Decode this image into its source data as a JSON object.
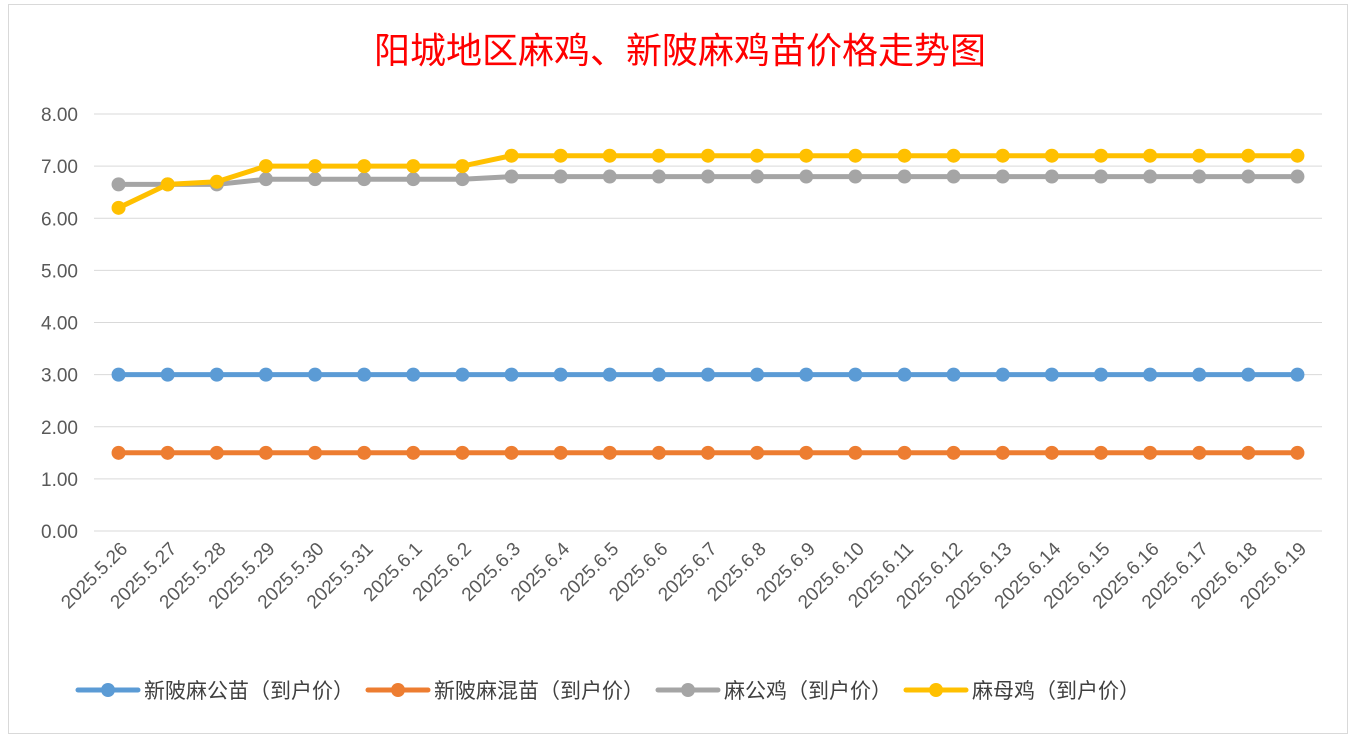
{
  "chart_data": {
    "type": "line",
    "title": "阳城地区麻鸡、新陂麻鸡苗价格走势图",
    "xlabel": "",
    "ylabel": "",
    "ylim": [
      0,
      8
    ],
    "y_ticks": [
      "0.00",
      "1.00",
      "2.00",
      "3.00",
      "4.00",
      "5.00",
      "6.00",
      "7.00",
      "8.00"
    ],
    "grid": true,
    "legend_position": "bottom",
    "categories": [
      "2025.5.26",
      "2025.5.27",
      "2025.5.28",
      "2025.5.29",
      "2025.5.30",
      "2025.5.31",
      "2025.6.1",
      "2025.6.2",
      "2025.6.3",
      "2025.6.4",
      "2025.6.5",
      "2025.6.6",
      "2025.6.7",
      "2025.6.8",
      "2025.6.9",
      "2025.6.10",
      "2025.6.11",
      "2025.6.12",
      "2025.6.13",
      "2025.6.14",
      "2025.6.15",
      "2025.6.16",
      "2025.6.17",
      "2025.6.18",
      "2025.6.19"
    ],
    "series": [
      {
        "name": "新陂麻公苗（到户价）",
        "color": "#5b9bd5",
        "values": [
          3.0,
          3.0,
          3.0,
          3.0,
          3.0,
          3.0,
          3.0,
          3.0,
          3.0,
          3.0,
          3.0,
          3.0,
          3.0,
          3.0,
          3.0,
          3.0,
          3.0,
          3.0,
          3.0,
          3.0,
          3.0,
          3.0,
          3.0,
          3.0,
          3.0
        ]
      },
      {
        "name": "新陂麻混苗（到户价）",
        "color": "#ed7d31",
        "values": [
          1.5,
          1.5,
          1.5,
          1.5,
          1.5,
          1.5,
          1.5,
          1.5,
          1.5,
          1.5,
          1.5,
          1.5,
          1.5,
          1.5,
          1.5,
          1.5,
          1.5,
          1.5,
          1.5,
          1.5,
          1.5,
          1.5,
          1.5,
          1.5,
          1.5
        ]
      },
      {
        "name": "麻公鸡（到户价）",
        "color": "#a5a5a5",
        "values": [
          6.65,
          6.65,
          6.65,
          6.75,
          6.75,
          6.75,
          6.75,
          6.75,
          6.8,
          6.8,
          6.8,
          6.8,
          6.8,
          6.8,
          6.8,
          6.8,
          6.8,
          6.8,
          6.8,
          6.8,
          6.8,
          6.8,
          6.8,
          6.8,
          6.8
        ]
      },
      {
        "name": "麻母鸡（到户价）",
        "color": "#ffc000",
        "values": [
          6.2,
          6.65,
          6.7,
          7.0,
          7.0,
          7.0,
          7.0,
          7.0,
          7.2,
          7.2,
          7.2,
          7.2,
          7.2,
          7.2,
          7.2,
          7.2,
          7.2,
          7.2,
          7.2,
          7.2,
          7.2,
          7.2,
          7.2,
          7.2,
          7.2
        ]
      }
    ]
  }
}
